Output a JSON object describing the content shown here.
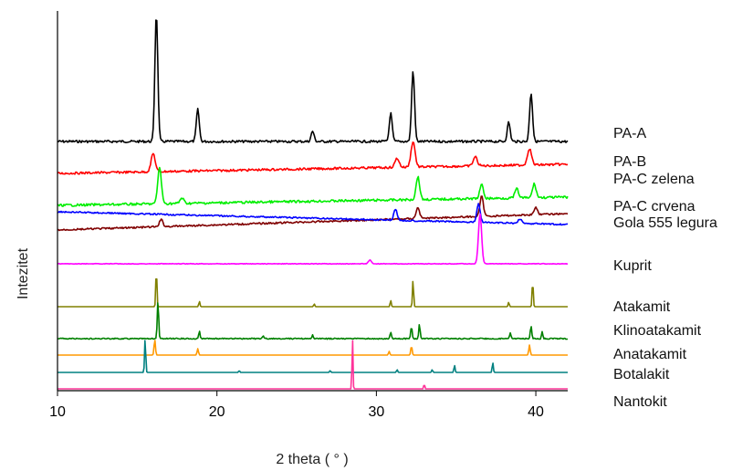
{
  "chart_data": {
    "type": "line",
    "title": "",
    "xlabel": "2 theta ( ° )",
    "ylabel": "Intezitet",
    "xlim": [
      10,
      42
    ],
    "xticks": [
      10,
      20,
      30,
      40
    ],
    "ytick_labels": "none",
    "grid": false,
    "legend": "labels to the right of each trace",
    "series": [
      {
        "name": "PA-A",
        "color": "#000000",
        "kind": "measured",
        "peaks": [
          [
            16.2,
            100
          ],
          [
            18.8,
            25
          ],
          [
            26.0,
            8
          ],
          [
            30.9,
            22
          ],
          [
            32.3,
            55
          ],
          [
            38.3,
            15
          ],
          [
            39.7,
            38
          ]
        ]
      },
      {
        "name": "PA-B",
        "color": "#ff0000",
        "kind": "measured",
        "peaks": [
          [
            16.0,
            20
          ],
          [
            31.3,
            10
          ],
          [
            32.3,
            28
          ],
          [
            36.2,
            10
          ],
          [
            39.6,
            18
          ]
        ]
      },
      {
        "name": "PA-C zelena",
        "color": "#00ee00",
        "kind": "measured",
        "peaks": [
          [
            16.4,
            40
          ],
          [
            17.8,
            6
          ],
          [
            32.6,
            25
          ],
          [
            36.6,
            15
          ],
          [
            38.8,
            10
          ],
          [
            39.9,
            15
          ]
        ]
      },
      {
        "name": "PA-C crvena",
        "color": "#800000",
        "kind": "measured",
        "peaks": [
          [
            16.5,
            8
          ],
          [
            32.6,
            12
          ],
          [
            36.6,
            22
          ],
          [
            40.0,
            8
          ]
        ]
      },
      {
        "name": "Gola 555 legura",
        "color": "#0000ff",
        "kind": "measured",
        "peaks": [
          [
            31.2,
            12
          ],
          [
            36.4,
            20
          ],
          [
            39.0,
            5
          ]
        ]
      },
      {
        "name": "Kuprit",
        "color": "#ff00ff",
        "kind": "reference",
        "peaks": [
          [
            29.6,
            4
          ],
          [
            36.5,
            55
          ],
          [
            42.4,
            10
          ]
        ]
      },
      {
        "name": "Atakamit",
        "color": "#808000",
        "kind": "reference",
        "peaks": [
          [
            16.2,
            42
          ],
          [
            18.9,
            6
          ],
          [
            26.1,
            3
          ],
          [
            30.9,
            7
          ],
          [
            32.3,
            30
          ],
          [
            38.3,
            5
          ],
          [
            39.8,
            29
          ]
        ]
      },
      {
        "name": "Klinoatakamit",
        "color": "#008000",
        "kind": "reference",
        "peaks": [
          [
            16.3,
            42
          ],
          [
            18.9,
            8
          ],
          [
            22.9,
            3
          ],
          [
            26.0,
            4
          ],
          [
            30.9,
            7
          ],
          [
            32.2,
            14
          ],
          [
            32.7,
            16
          ],
          [
            38.4,
            6
          ],
          [
            39.7,
            14
          ],
          [
            40.4,
            8
          ]
        ]
      },
      {
        "name": "Anatakamit",
        "color": "#ff9900",
        "kind": "reference",
        "peaks": [
          [
            16.1,
            17
          ],
          [
            18.8,
            7
          ],
          [
            30.8,
            4
          ],
          [
            32.2,
            10
          ],
          [
            39.6,
            11
          ]
        ]
      },
      {
        "name": "Botalakit",
        "color": "#008080",
        "kind": "reference",
        "peaks": [
          [
            15.5,
            38
          ],
          [
            21.4,
            2
          ],
          [
            27.1,
            2
          ],
          [
            31.3,
            3
          ],
          [
            33.5,
            3
          ],
          [
            34.9,
            8
          ],
          [
            37.3,
            11
          ]
        ]
      },
      {
        "name": "Nantokit",
        "color": "#ff3399",
        "kind": "reference",
        "peaks": [
          [
            28.5,
            60
          ],
          [
            33.0,
            6
          ]
        ]
      }
    ]
  }
}
